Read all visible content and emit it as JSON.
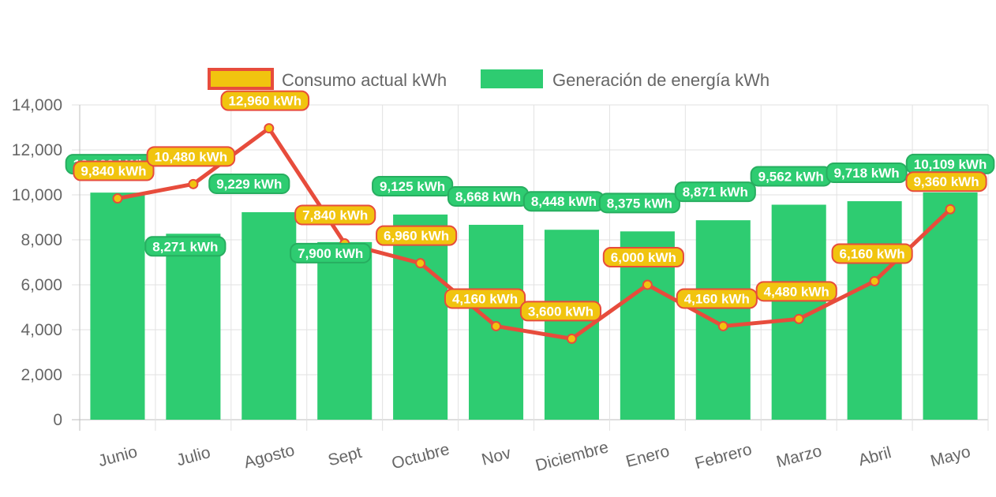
{
  "chart_data": {
    "type": "bar",
    "categories": [
      "Junio",
      "Julio",
      "Agosto",
      "Sept",
      "Octubre",
      "Nov",
      "Diciembre",
      "Enero",
      "Febrero",
      "Marzo",
      "Abril",
      "Mayo"
    ],
    "series": [
      {
        "name": "Consumo actual kWh",
        "type": "line",
        "values": [
          9840,
          10480,
          12960,
          7840,
          6960,
          4160,
          3600,
          6000,
          4160,
          4480,
          6160,
          9360
        ],
        "labels": [
          "9,840 kWh",
          "10,480 kWh",
          "12,960 kWh",
          "7,840 kWh",
          "6,960 kWh",
          "4,160 kWh",
          "3,600 kWh",
          "6,000 kWh",
          "4,160 kWh",
          "4,480 kWh",
          "6,160 kWh",
          "9,360 kWh"
        ],
        "color": "#e74c3c",
        "point_color": "#f1c40f"
      },
      {
        "name": "Generación de energía kWh",
        "type": "bar",
        "values": [
          10100,
          8271,
          9229,
          7900,
          9125,
          8668,
          8448,
          8375,
          8871,
          9562,
          9718,
          10109
        ],
        "labels": [
          "10,100 kWh",
          "8,271 kWh",
          "9,229 kWh",
          "7,900 kWh",
          "9,125 kWh",
          "8,668 kWh",
          "8,448 kWh",
          "8,375 kWh",
          "8,871 kWh",
          "9,562 kWh",
          "9,718 kWh",
          "10,109 kWh"
        ],
        "color": "#2ecc71"
      }
    ],
    "yticks": [
      "0",
      "2,000",
      "4,000",
      "6,000",
      "8,000",
      "10,000",
      "12,000",
      "14,000"
    ],
    "ylim": [
      0,
      14000
    ],
    "grid": true,
    "legend": "top-center",
    "title": "",
    "xlabel": "",
    "ylabel": ""
  }
}
